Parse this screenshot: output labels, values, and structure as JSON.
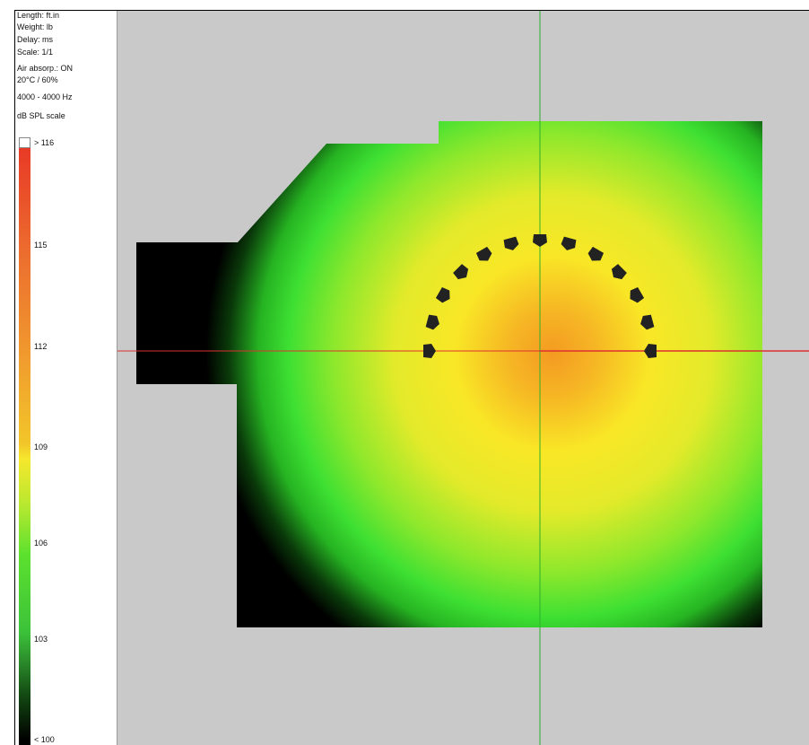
{
  "info": {
    "length_unit": "Length: ft.in",
    "weight_unit": "Weight: lb",
    "delay_unit": "Delay: ms",
    "scale": "Scale: 1/1",
    "air_absorption": "Air absorp.: ON",
    "conditions": "20°C / 60%",
    "frequency_band": "4000 - 4000 Hz",
    "spl_scale_title": "dB SPL scale"
  },
  "spl_scale": {
    "top_label": "> 116",
    "bottom_label": "< 100",
    "ticks": [
      "115",
      "112",
      "109",
      "106",
      "103"
    ]
  },
  "colors": {
    "out_of_range_top": "#ffffff",
    "max_red": "#e83a26",
    "orange": "#f0982e",
    "yellow": "#f6e82c",
    "green": "#3ee033",
    "min_black": "#000000",
    "background": "#c9c9c9",
    "crosshair_vertical": "#2db02d",
    "crosshair_horizontal": "#dd3030",
    "speaker": "#222222"
  },
  "speakers": {
    "count": 13,
    "icon": "speaker-cabinet-icon"
  }
}
